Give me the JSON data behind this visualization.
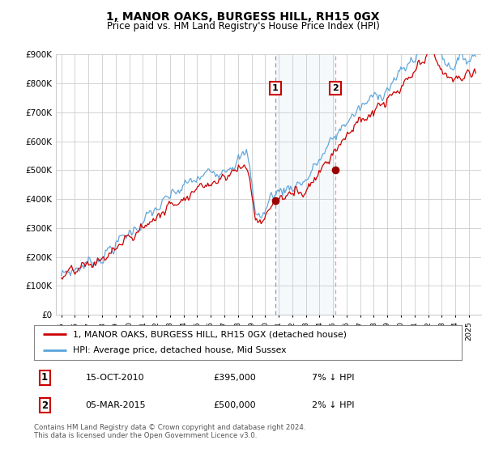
{
  "title": "1, MANOR OAKS, BURGESS HILL, RH15 0GX",
  "subtitle": "Price paid vs. HM Land Registry's House Price Index (HPI)",
  "ylim": [
    0,
    900000
  ],
  "yticks": [
    0,
    100000,
    200000,
    300000,
    400000,
    500000,
    600000,
    700000,
    800000,
    900000
  ],
  "ytick_labels": [
    "£0",
    "£100K",
    "£200K",
    "£300K",
    "£400K",
    "£500K",
    "£600K",
    "£700K",
    "£800K",
    "£900K"
  ],
  "legend_entry1": "1, MANOR OAKS, BURGESS HILL, RH15 0GX (detached house)",
  "legend_entry2": "HPI: Average price, detached house, Mid Sussex",
  "transaction1_date": "15-OCT-2010",
  "transaction1_price": "£395,000",
  "transaction1_hpi": "7% ↓ HPI",
  "transaction2_date": "05-MAR-2015",
  "transaction2_price": "£500,000",
  "transaction2_hpi": "2% ↓ HPI",
  "footer": "Contains HM Land Registry data © Crown copyright and database right 2024.\nThis data is licensed under the Open Government Licence v3.0.",
  "hpi_color": "#5ba3d9",
  "price_color": "#cc0000",
  "marker_color": "#990000",
  "vline1_color": "#aaaacc",
  "vline2_color": "#ffaaaa",
  "shade_color": "#d8e8f5",
  "background_color": "#ffffff",
  "grid_color": "#cccccc"
}
